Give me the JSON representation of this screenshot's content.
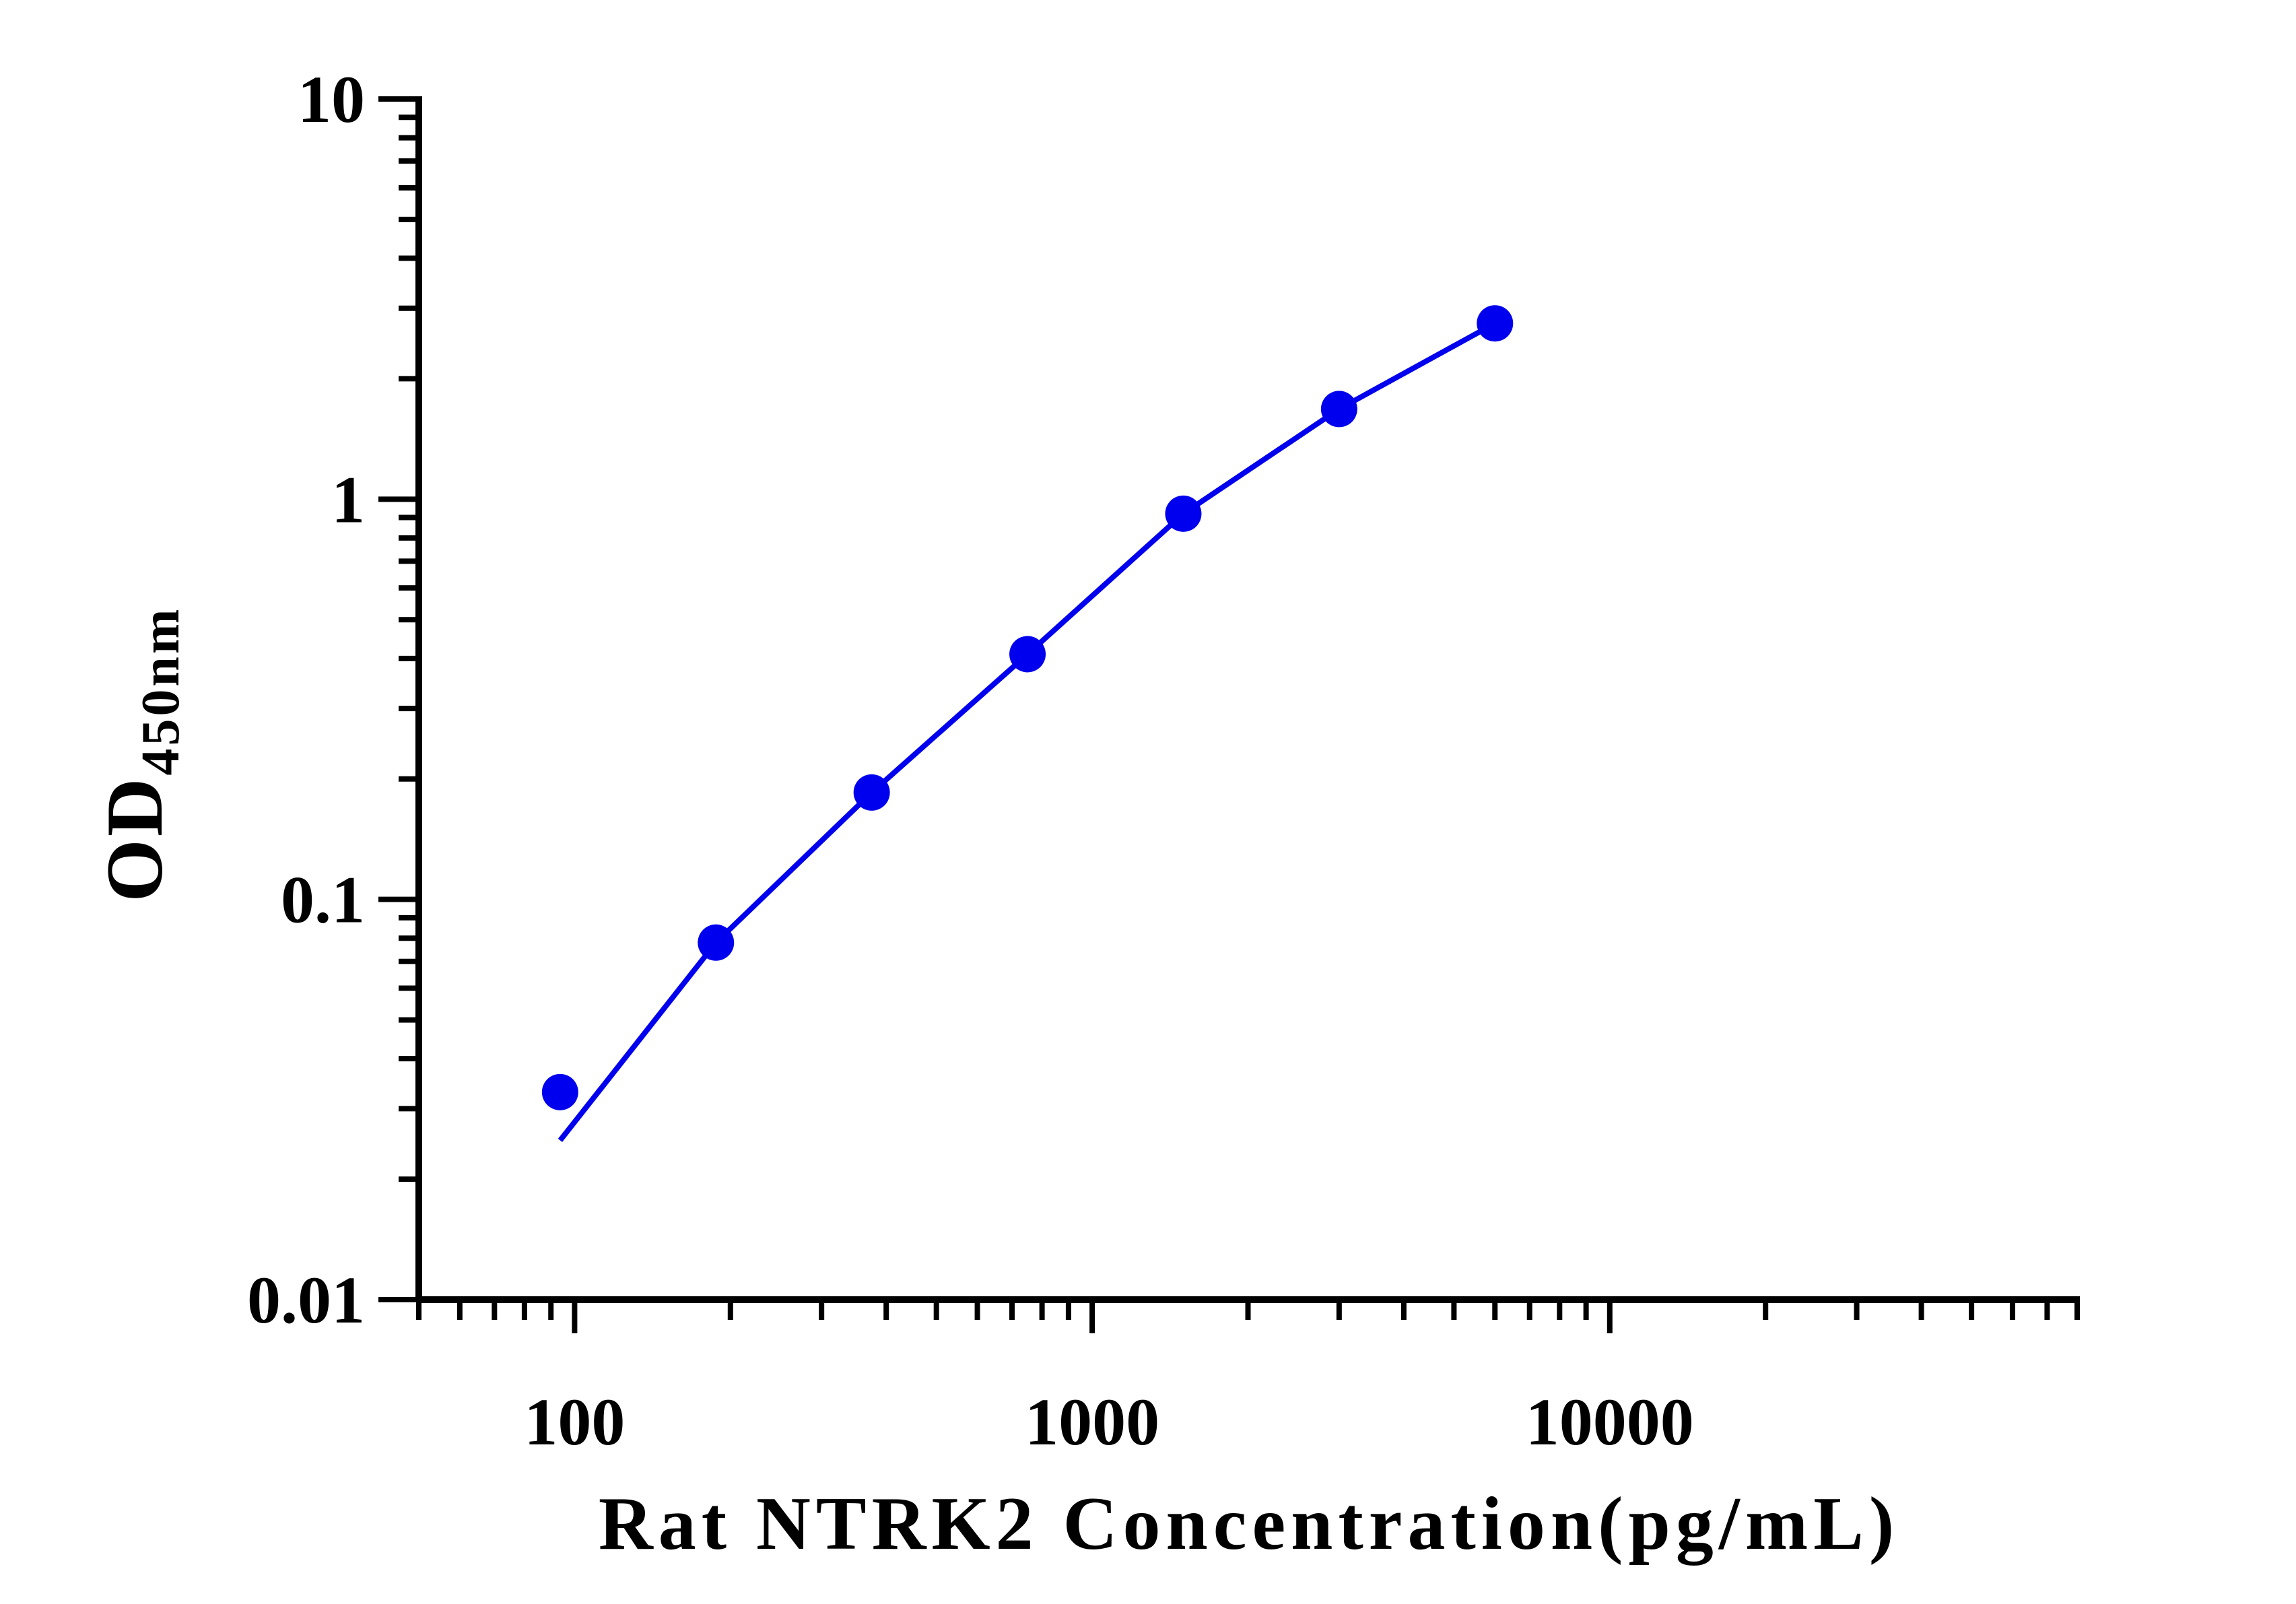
{
  "chart_data": {
    "type": "scatter",
    "title": "",
    "xlabel": "Rat NTRK2 Concentration(pg/mL)",
    "ylabel": "OD",
    "ylabel_subscript": "450nm",
    "xscale": "log",
    "yscale": "log",
    "xlim": [
      50,
      80000
    ],
    "ylim": [
      0.01,
      10
    ],
    "x_ticks": [
      100,
      1000,
      10000
    ],
    "x_tick_labels": [
      "100",
      "1000",
      "10000"
    ],
    "y_ticks": [
      0.01,
      0.1,
      1,
      10
    ],
    "y_tick_labels": [
      "0.01",
      "0.1",
      "1",
      "10"
    ],
    "grid": false,
    "legend": "none",
    "color": "#0000ee",
    "series": [
      {
        "name": "",
        "x": [
          93.75,
          187.5,
          375,
          750,
          1500,
          3000,
          6000
        ],
        "y": [
          0.033,
          0.078,
          0.185,
          0.41,
          0.92,
          1.68,
          2.75
        ]
      }
    ],
    "fit_curve": {
      "x": [
        93.75,
        187.5,
        375,
        750,
        1500,
        3000,
        6000
      ],
      "y": [
        0.025,
        0.078,
        0.185,
        0.41,
        0.92,
        1.68,
        2.75
      ]
    }
  }
}
